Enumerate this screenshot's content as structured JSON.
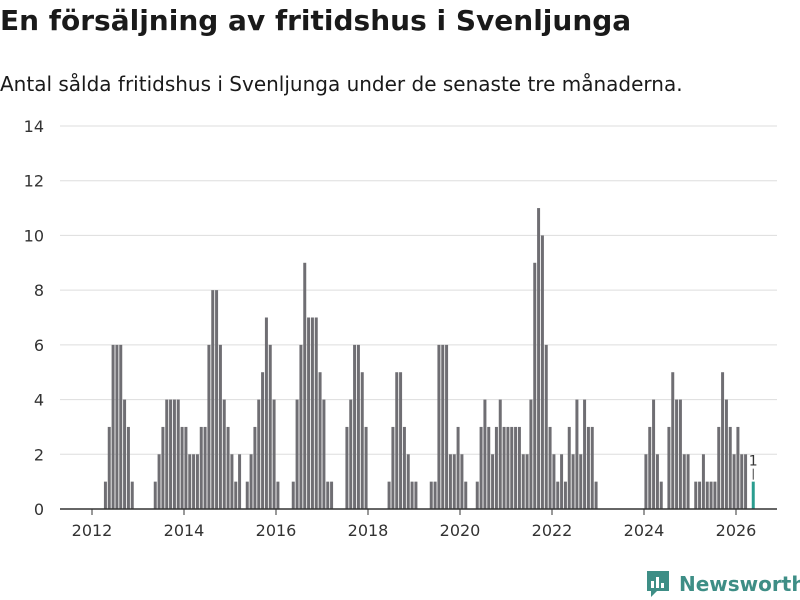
{
  "header": {
    "title": "En försäljning av fritidshus i Svenljunga",
    "subtitle": "Antal sålda fritidshus i Svenljunga under de senaste tre månaderna."
  },
  "brand": {
    "name": "Newsworthy",
    "color": "#3e8e86"
  },
  "colors": {
    "bar": "#6f6e73",
    "highlight": "#2a9d8f",
    "grid": "#dddddd",
    "axis": "#333333"
  },
  "chart_data": {
    "type": "bar",
    "title": "En försäljning av fritidshus i Svenljunga",
    "xlabel": "",
    "ylabel": "",
    "ylim": [
      0,
      14
    ],
    "yticks": [
      0,
      2,
      4,
      6,
      8,
      10,
      12,
      14
    ],
    "xticks": [
      "2012",
      "2014",
      "2016",
      "2018",
      "2020",
      "2022",
      "2024",
      "2026"
    ],
    "start": "2011-01",
    "values": [
      0,
      0,
      0,
      0,
      0,
      0,
      0,
      0,
      0,
      0,
      0,
      0,
      0,
      0,
      0,
      1,
      3,
      6,
      6,
      6,
      4,
      3,
      1,
      0,
      0,
      0,
      0,
      0,
      1,
      2,
      3,
      4,
      4,
      4,
      4,
      3,
      3,
      2,
      2,
      2,
      3,
      3,
      6,
      8,
      8,
      6,
      4,
      3,
      2,
      1,
      2,
      0,
      1,
      2,
      3,
      4,
      5,
      7,
      6,
      4,
      1,
      0,
      0,
      0,
      1,
      4,
      6,
      9,
      7,
      7,
      7,
      5,
      4,
      1,
      1,
      0,
      0,
      0,
      3,
      4,
      6,
      6,
      5,
      3,
      0,
      0,
      0,
      0,
      0,
      1,
      3,
      5,
      5,
      3,
      2,
      1,
      1,
      0,
      0,
      0,
      1,
      1,
      6,
      6,
      6,
      2,
      2,
      3,
      2,
      1,
      0,
      0,
      1,
      3,
      4,
      3,
      2,
      3,
      4,
      3,
      3,
      3,
      3,
      3,
      2,
      2,
      4,
      9,
      11,
      10,
      6,
      3,
      2,
      1,
      2,
      1,
      3,
      2,
      4,
      2,
      4,
      3,
      3,
      1,
      0,
      0,
      0,
      0,
      0,
      0,
      0,
      0,
      0,
      0,
      0,
      0,
      2,
      3,
      4,
      2,
      1,
      0,
      3,
      5,
      4,
      4,
      2,
      2,
      0,
      1,
      1,
      2,
      1,
      1,
      1,
      3,
      5,
      4,
      3,
      2,
      3,
      2,
      2,
      0,
      1
    ],
    "highlight_last": true,
    "last_label": "1"
  }
}
